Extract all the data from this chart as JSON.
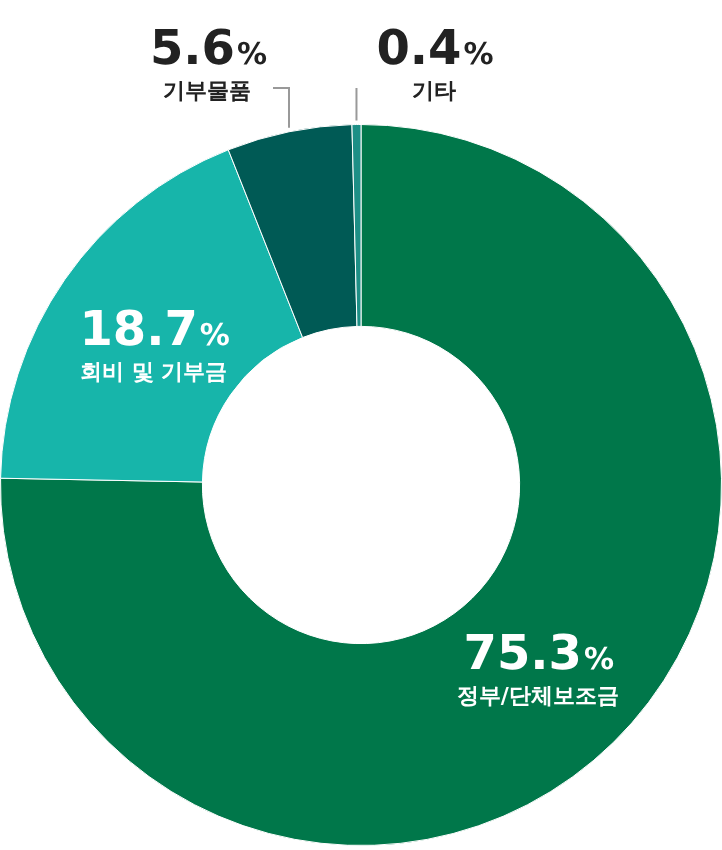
{
  "chart_data": {
    "type": "donut",
    "categories": [
      "정부/단체보조금",
      "회비 및 기부금",
      "기부물품",
      "기타"
    ],
    "values": [
      75.3,
      18.7,
      5.6,
      0.4
    ],
    "colors": [
      "#00774a",
      "#17b5aa",
      "#005a55",
      "#1d8f86"
    ],
    "value_labels": [
      "75.3%",
      "18.7%",
      "5.6%",
      "0.4%"
    ],
    "legend": false
  }
}
